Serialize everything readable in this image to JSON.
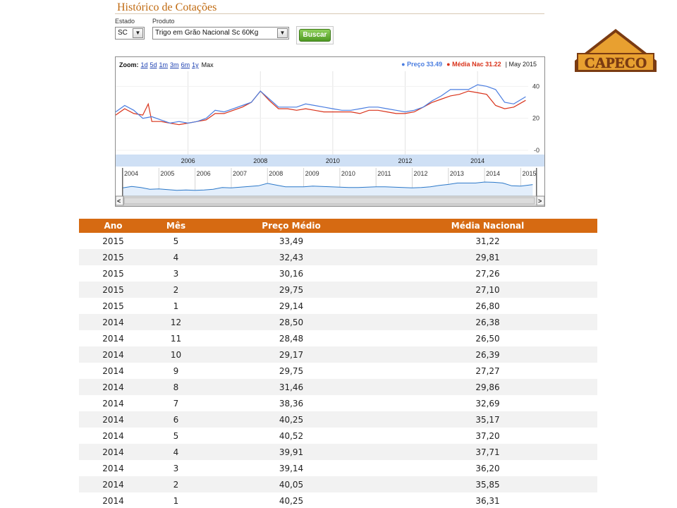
{
  "page": {
    "title": "Histórico de Cotações"
  },
  "filters": {
    "estado_label": "Estado",
    "estado_value": "SC",
    "produto_label": "Produto",
    "produto_value": "Trigo em Grão Nacional Sc 60Kg",
    "search_button": "Buscar",
    "dropdown_glyph": "▼"
  },
  "chart": {
    "zoom_label": "Zoom:",
    "zoom_options": [
      "1d",
      "5d",
      "1m",
      "3m",
      "6m",
      "1y"
    ],
    "zoom_active": "Max",
    "legend": {
      "preco": "● Preço 33.49",
      "media": "● Média Nac 31.22",
      "date": "May 2015"
    },
    "colors": {
      "preco": "#4a7de0",
      "media": "#d9331b",
      "nav_fill": "#e3eefb",
      "band": "#cfe0f5"
    }
  },
  "chart_data": {
    "type": "line",
    "title": "",
    "x_tick_labels": [
      "2006",
      "2008",
      "2010",
      "2012",
      "2014"
    ],
    "y_tick_labels": [
      "40",
      "20",
      "0"
    ],
    "ylim": [
      0,
      45
    ],
    "navigator_labels": [
      "2004",
      "2005",
      "2006",
      "2007",
      "2008",
      "2009",
      "2010",
      "2011",
      "2012",
      "2013",
      "2014",
      "2015"
    ],
    "series": [
      {
        "name": "Preço",
        "x": [
          2004.0,
          2004.25,
          2004.5,
          2004.75,
          2005.0,
          2005.25,
          2005.5,
          2005.75,
          2006.0,
          2006.25,
          2006.5,
          2006.75,
          2007.0,
          2007.25,
          2007.5,
          2007.75,
          2008.0,
          2008.25,
          2008.5,
          2008.75,
          2009.0,
          2009.25,
          2009.5,
          2009.75,
          2010.0,
          2010.25,
          2010.5,
          2010.75,
          2011.0,
          2011.25,
          2011.5,
          2011.75,
          2012.0,
          2012.25,
          2012.5,
          2012.75,
          2013.0,
          2013.25,
          2013.5,
          2013.75,
          2014.0,
          2014.25,
          2014.5,
          2014.75,
          2015.0,
          2015.33
        ],
        "y": [
          24,
          28,
          25,
          20,
          21,
          19,
          17,
          18,
          17,
          18,
          20,
          25,
          24,
          26,
          28,
          30,
          37,
          32,
          27,
          27,
          27,
          29,
          28,
          27,
          26,
          25,
          25,
          26,
          27,
          27,
          26,
          25,
          24,
          25,
          27,
          31,
          34,
          38,
          38,
          38,
          41,
          40,
          38,
          30,
          29,
          33.49
        ]
      },
      {
        "name": "Média Nac",
        "x": [
          2004.0,
          2004.25,
          2004.5,
          2004.75,
          2004.9,
          2005.0,
          2005.25,
          2005.5,
          2005.75,
          2006.0,
          2006.25,
          2006.5,
          2006.75,
          2007.0,
          2007.25,
          2007.5,
          2007.75,
          2008.0,
          2008.25,
          2008.5,
          2008.75,
          2009.0,
          2009.25,
          2009.5,
          2009.75,
          2010.0,
          2010.25,
          2010.5,
          2010.75,
          2011.0,
          2011.25,
          2011.5,
          2011.75,
          2012.0,
          2012.25,
          2012.5,
          2012.75,
          2013.0,
          2013.25,
          2013.5,
          2013.75,
          2014.0,
          2014.25,
          2014.5,
          2014.75,
          2015.0,
          2015.33
        ],
        "y": [
          22,
          26,
          23,
          22,
          29,
          18,
          18,
          17,
          16,
          17,
          18,
          19,
          23,
          23,
          25,
          27,
          30,
          37,
          31,
          26,
          26,
          25,
          26,
          25,
          24,
          24,
          24,
          24,
          23,
          25,
          25,
          24,
          23,
          23,
          24,
          27,
          30,
          32,
          34,
          35,
          37,
          36,
          35,
          28,
          26,
          27,
          31.22
        ]
      }
    ]
  },
  "table": {
    "headers": [
      "Ano",
      "Mês",
      "Preço Médio",
      "Média Nacional"
    ],
    "rows": [
      [
        "2015",
        "5",
        "33,49",
        "31,22"
      ],
      [
        "2015",
        "4",
        "32,43",
        "29,81"
      ],
      [
        "2015",
        "3",
        "30,16",
        "27,26"
      ],
      [
        "2015",
        "2",
        "29,75",
        "27,10"
      ],
      [
        "2015",
        "1",
        "29,14",
        "26,80"
      ],
      [
        "2014",
        "12",
        "28,50",
        "26,38"
      ],
      [
        "2014",
        "11",
        "28,48",
        "26,50"
      ],
      [
        "2014",
        "10",
        "29,17",
        "26,39"
      ],
      [
        "2014",
        "9",
        "29,75",
        "27,27"
      ],
      [
        "2014",
        "8",
        "31,46",
        "29,86"
      ],
      [
        "2014",
        "7",
        "38,36",
        "32,69"
      ],
      [
        "2014",
        "6",
        "40,25",
        "35,17"
      ],
      [
        "2014",
        "5",
        "40,52",
        "37,20"
      ],
      [
        "2014",
        "4",
        "39,91",
        "37,71"
      ],
      [
        "2014",
        "3",
        "39,14",
        "36,20"
      ],
      [
        "2014",
        "2",
        "40,05",
        "35,85"
      ],
      [
        "2014",
        "1",
        "40,25",
        "36,31"
      ]
    ]
  },
  "logo": {
    "text": "CAPECO",
    "fill": "#e8a030",
    "outline": "#7a3b12"
  }
}
